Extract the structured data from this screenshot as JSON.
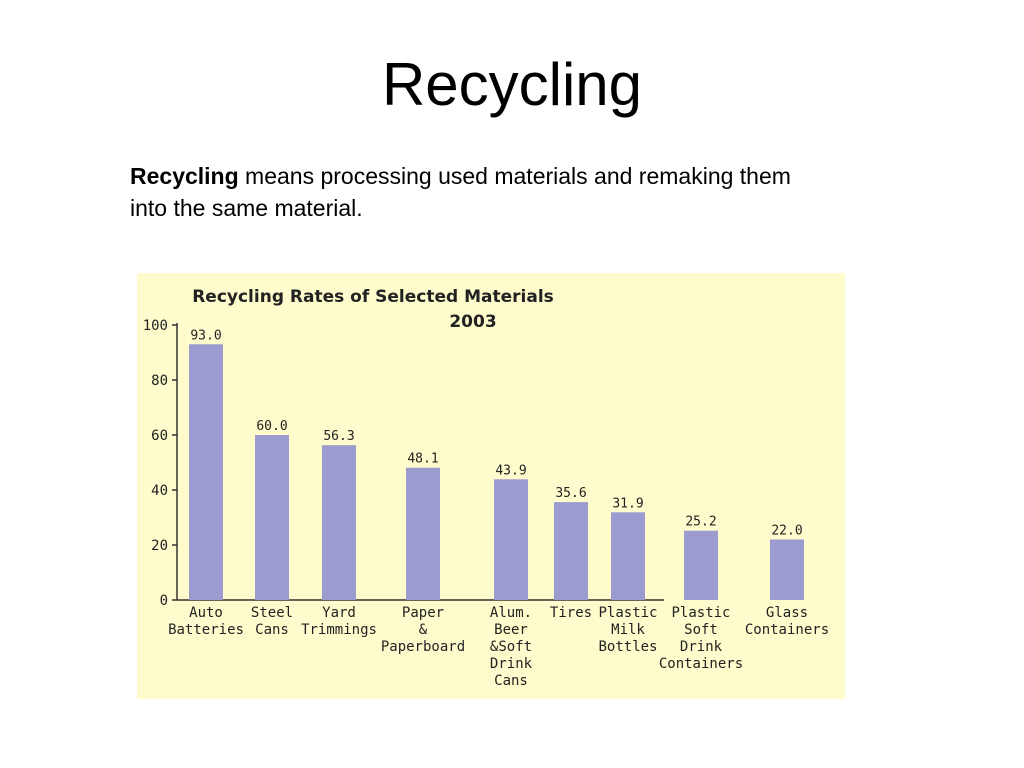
{
  "slide": {
    "title": "Recycling",
    "definition_term": "Recycling",
    "definition_rest": " means processing used materials and remaking them into the same material."
  },
  "chart_data": {
    "type": "bar",
    "title_line1": "Recycling Rates of Selected Materials",
    "title_line2": "2003",
    "categories": [
      [
        "Auto",
        "Batteries"
      ],
      [
        "Steel",
        "Cans"
      ],
      [
        "Yard",
        "Trimmings"
      ],
      [
        "Paper",
        "&",
        "Paperboard"
      ],
      [
        "Alum.",
        "Beer",
        "&Soft",
        "Drink",
        "Cans"
      ],
      [
        "Tires"
      ],
      [
        "Plastic",
        "Milk",
        "Bottles"
      ],
      [
        "Plastic",
        "Soft",
        "Drink",
        "Containers"
      ],
      [
        "Glass",
        "Containers"
      ]
    ],
    "values": [
      93.0,
      60.0,
      56.3,
      48.1,
      43.9,
      35.6,
      31.9,
      25.2,
      22.0
    ],
    "value_labels": [
      "93.0",
      "60.0",
      "56.3",
      "48.1",
      "43.9",
      "35.6",
      "31.9",
      "25.2",
      "22.0"
    ],
    "y_ticks": [
      "0",
      "20",
      "40",
      "60",
      "80",
      "100"
    ],
    "ylim": [
      0,
      100
    ],
    "grid": false,
    "colors": {
      "bar": "#9b9bcf",
      "panel": "#fefccc",
      "axis": "#333333"
    }
  }
}
